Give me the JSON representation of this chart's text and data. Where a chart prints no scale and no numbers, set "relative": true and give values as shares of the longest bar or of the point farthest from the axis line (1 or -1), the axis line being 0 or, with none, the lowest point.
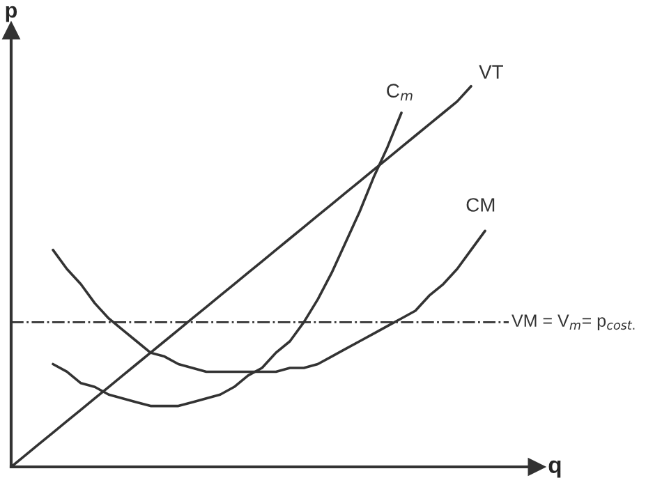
{
  "chart_data": {
    "type": "line",
    "relative": true,
    "xlabel": "q",
    "ylabel": "p",
    "tick_labels": false,
    "marker": "none",
    "line_style": "solid",
    "categories": [
      null,
      null,
      null,
      null,
      null,
      null,
      null,
      null,
      null,
      null,
      null,
      null,
      null,
      null,
      null,
      null,
      null,
      null,
      null,
      null,
      null,
      null,
      null,
      null,
      null,
      null,
      null,
      null,
      null,
      null,
      null,
      null,
      null,
      null,
      null,
      null
    ],
    "series": [
      {
        "name": "C$_{m}$",
        "color": "#333333",
        "values": [
          null,
          null,
          null,
          0.27,
          0.25,
          0.22,
          0.21,
          0.19,
          0.18,
          0.17,
          0.16,
          0.16,
          0.16,
          0.17,
          0.18,
          0.19,
          0.21,
          0.24,
          0.26,
          0.3,
          0.33,
          0.38,
          0.44,
          0.51,
          0.59,
          0.67,
          0.76,
          0.84,
          0.93,
          null,
          null,
          null,
          null,
          null,
          null,
          null
        ]
      },
      {
        "name": "VT",
        "color": "#333333",
        "values": [
          0,
          0.03,
          0.06,
          0.09,
          0.12,
          0.15,
          0.18,
          0.21,
          0.24,
          0.27,
          0.3,
          0.33,
          0.36,
          0.39,
          0.42,
          0.45,
          0.48,
          0.51,
          0.54,
          0.57,
          0.6,
          0.63,
          0.66,
          0.69,
          0.72,
          0.75,
          0.78,
          0.81,
          0.84,
          0.87,
          0.9,
          0.93,
          0.96,
          1.0,
          null,
          null
        ]
      },
      {
        "name": "CM",
        "color": "#333333",
        "values": [
          null,
          null,
          null,
          0.57,
          0.52,
          0.48,
          0.43,
          0.39,
          0.36,
          0.33,
          0.3,
          0.29,
          0.27,
          0.26,
          0.25,
          0.25,
          0.25,
          0.25,
          0.25,
          0.25,
          0.26,
          0.26,
          0.27,
          0.29,
          0.31,
          0.33,
          0.35,
          0.37,
          0.39,
          0.41,
          0.45,
          0.48,
          0.52,
          0.57,
          0.62,
          null
        ]
      }
    ],
    "ref_lines": [
      {
        "axis": "y",
        "value": 0.38,
        "label": "VM = V$_{m}$= p$_{cost.}$",
        "color": "#333333",
        "line_style": "dashdot"
      }
    ]
  }
}
